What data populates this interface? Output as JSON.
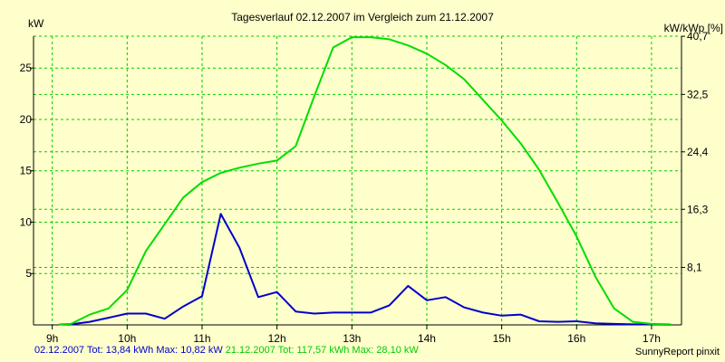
{
  "chart_data": {
    "type": "line",
    "title": "Tagesverlauf 02.12.2007 im Vergleich zum 21.12.2007",
    "ylabel": "kW",
    "y2label": "kW/kWp [%]",
    "xlim": [
      8.75,
      17.4
    ],
    "ylim": [
      0,
      28.1
    ],
    "x_ticks": [
      9,
      10,
      11,
      12,
      13,
      14,
      15,
      16,
      17
    ],
    "x_tick_labels": [
      "9h",
      "10h",
      "11h",
      "12h",
      "13h",
      "14h",
      "15h",
      "16h",
      "17h"
    ],
    "y_ticks": [
      5,
      10,
      15,
      20,
      25
    ],
    "y_tick_labels": [
      "5",
      "10",
      "15",
      "20",
      "25"
    ],
    "y2_ticks": [
      8.1,
      16.3,
      24.4,
      32.5,
      40.7
    ],
    "y2_tick_labels": [
      "8,1",
      "16,3",
      "24,4",
      "32,5",
      "40,7"
    ],
    "y2_to_y_factor": 0.6903,
    "grid": true,
    "grid_color": "#00cc00",
    "axis_color": "#000000",
    "background": "#ffffcc",
    "series": [
      {
        "name": "02.12.2007",
        "color": "#0000cc",
        "x": [
          9.25,
          9.5,
          9.75,
          10.0,
          10.25,
          10.5,
          10.75,
          11.0,
          11.25,
          11.5,
          11.75,
          12.0,
          12.25,
          12.5,
          12.75,
          13.0,
          13.25,
          13.5,
          13.75,
          14.0,
          14.25,
          14.5,
          14.75,
          15.0,
          15.25,
          15.5,
          15.75,
          16.0,
          16.25,
          16.5,
          16.75,
          17.0,
          17.25
        ],
        "values": [
          0.05,
          0.3,
          0.7,
          1.1,
          1.1,
          0.6,
          1.8,
          2.8,
          10.8,
          7.5,
          2.7,
          3.2,
          1.3,
          1.1,
          1.2,
          1.2,
          1.2,
          1.9,
          3.8,
          2.4,
          2.7,
          1.7,
          1.2,
          0.9,
          1.0,
          0.35,
          0.3,
          0.35,
          0.15,
          0.1,
          0.05,
          0.05,
          0.02
        ]
      },
      {
        "name": "21.12.2007",
        "color": "#00dd00",
        "x": [
          9.1,
          9.25,
          9.5,
          9.75,
          10.0,
          10.25,
          10.5,
          10.75,
          11.0,
          11.25,
          11.5,
          11.75,
          12.0,
          12.25,
          12.5,
          12.75,
          13.0,
          13.25,
          13.5,
          13.75,
          14.0,
          14.25,
          14.5,
          14.75,
          15.0,
          15.25,
          15.5,
          15.75,
          16.0,
          16.25,
          16.5,
          16.75,
          17.0,
          17.25
        ],
        "values": [
          0.05,
          0.1,
          1.0,
          1.6,
          3.4,
          7.2,
          9.8,
          12.4,
          13.9,
          14.8,
          15.3,
          15.7,
          16.0,
          17.4,
          22.3,
          27.0,
          28.0,
          28.0,
          27.8,
          27.2,
          26.4,
          25.3,
          23.9,
          21.9,
          19.9,
          17.7,
          15.1,
          11.9,
          8.6,
          4.7,
          1.6,
          0.3,
          0.1,
          0.05
        ]
      }
    ],
    "summary_1": "02.12.2007 Tot: 13,84 kWh Max: 10,82 kW",
    "summary_2": "21.12.2007 Tot: 117,57 kWh Max: 28,10 kW",
    "credit": "SunnyReport pinxit"
  }
}
